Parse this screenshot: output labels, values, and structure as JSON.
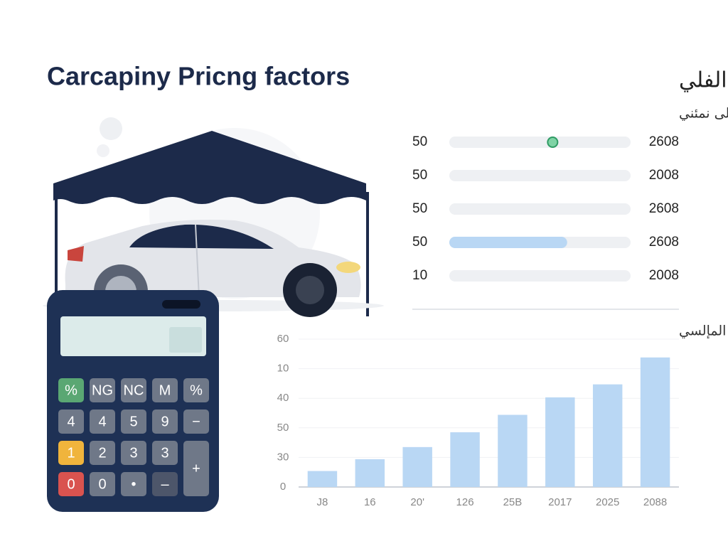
{
  "header": {
    "title": "Carcapiny Pricng factors",
    "arabic_title": "أقبـر ابغر الفلي",
    "arabic_subtitle": "آلخلنن الفلي النزذ الطنتلى نمئني"
  },
  "progress": {
    "rows": [
      {
        "left": "50",
        "right": "2608",
        "fill": 0,
        "marker": 0.57
      },
      {
        "left": "50",
        "right": "2008",
        "fill": 0
      },
      {
        "left": "50",
        "right": "2608",
        "fill": 0
      },
      {
        "left": "50",
        "right": "2608",
        "fill": 0.65
      },
      {
        "left": "10",
        "right": "2008",
        "fill": 0
      }
    ]
  },
  "calculator": {
    "keys": [
      "%",
      "NG",
      "NC",
      "M",
      "%",
      "4",
      "4",
      "5",
      "9",
      "−",
      "1",
      "2",
      "3",
      "3",
      "+",
      "0",
      "0",
      "•",
      "–"
    ]
  },
  "chart_data": {
    "type": "bar",
    "title": "بملقـن المإلسي",
    "categories": [
      "J8",
      "16",
      "20'",
      "126",
      "25B",
      "2017",
      "2025",
      "2088"
    ],
    "values": [
      0.54,
      0.94,
      1.35,
      1.85,
      2.44,
      3.03,
      3.47,
      4.38
    ],
    "color": "#b9d7f4",
    "ylim": [
      0,
      5
    ],
    "yticks": [
      {
        "value": 0,
        "label": "0"
      },
      {
        "value": 1,
        "label": "30"
      },
      {
        "value": 2,
        "label": "50"
      },
      {
        "value": 3,
        "label": "40"
      },
      {
        "value": 4,
        "label": "10"
      },
      {
        "value": 5,
        "label": "60"
      }
    ],
    "grid": true
  }
}
